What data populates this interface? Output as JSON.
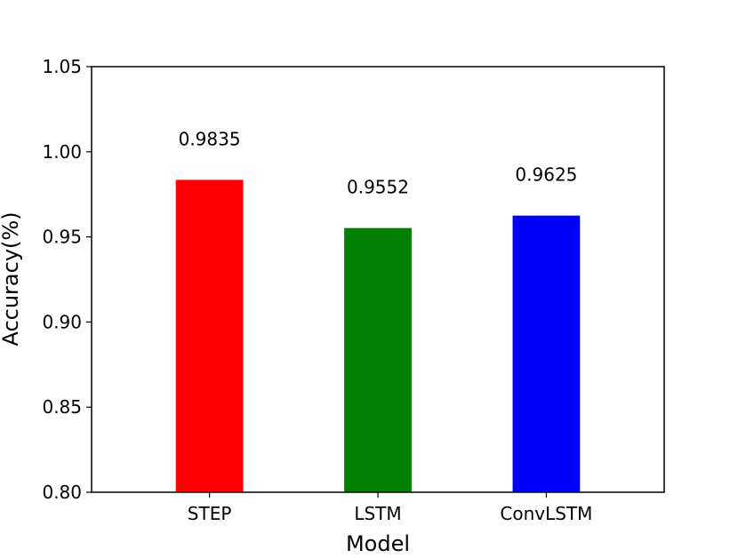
{
  "chart_data": {
    "type": "bar",
    "categories": [
      "STEP",
      "LSTM",
      "ConvLSTM"
    ],
    "values": [
      0.9835,
      0.9552,
      0.9625
    ],
    "data_labels": [
      "0.9835",
      "0.9552",
      "0.9625"
    ],
    "colors": [
      "#ff0000",
      "#008000",
      "#0000ff"
    ],
    "title": "",
    "xlabel": "Model",
    "ylabel": "Accuracy(%)",
    "ylim": [
      0.8,
      1.05
    ],
    "yticks": [
      "0.80",
      "0.85",
      "0.90",
      "0.95",
      "1.00",
      "1.05"
    ],
    "grid": false,
    "legend": "none"
  }
}
